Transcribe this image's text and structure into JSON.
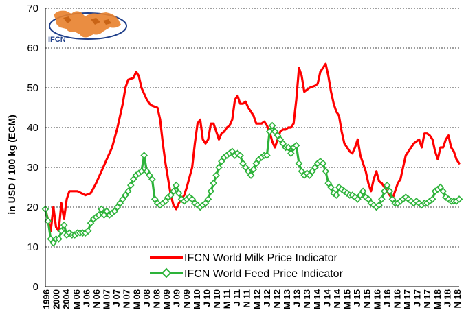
{
  "chart_data": {
    "type": "line",
    "title": "",
    "ylabel": "in USD / 100 kg (ECM)",
    "xlabel": "",
    "ylim": [
      0,
      70
    ],
    "yticks": [
      0,
      10,
      20,
      30,
      40,
      50,
      60,
      70
    ],
    "grid": "horizontal dashed",
    "legend": "bottom-center",
    "logo_text": "IFCN",
    "x_tick_labels": [
      "1996",
      "2000",
      "2004",
      "M 06",
      "J 06",
      "N 06",
      "M 07",
      "J 07",
      "N 07",
      "M 08",
      "J 08",
      "N 08",
      "M 09",
      "J 09",
      "N 09",
      "M 10",
      "J 10",
      "N 10",
      "M 11",
      "J 11",
      "N 11",
      "M 12",
      "J 12",
      "N 12",
      "M 13",
      "J 13",
      "N 13",
      "M 14",
      "J 14",
      "N 14",
      "M 15",
      "J 15",
      "N 15",
      "M 16",
      "J 16",
      "N 16",
      "M 17",
      "J 17",
      "N 17",
      "M 18",
      "J 18",
      "N 18"
    ],
    "x_points": 155,
    "series": [
      {
        "name": "IFCN World Milk Price Indicator",
        "color": "#ff0000",
        "marker": "none",
        "points": [
          [
            0,
            19.5
          ],
          [
            2,
            14
          ],
          [
            3,
            20
          ],
          [
            4,
            15
          ],
          [
            5,
            14
          ],
          [
            6,
            21
          ],
          [
            7,
            17
          ],
          [
            8,
            22
          ],
          [
            9,
            24
          ],
          [
            10,
            24
          ],
          [
            12,
            24
          ],
          [
            15,
            23
          ],
          [
            17,
            23.5
          ],
          [
            19,
            26
          ],
          [
            21,
            29
          ],
          [
            23,
            32
          ],
          [
            25,
            35
          ],
          [
            27,
            40
          ],
          [
            29,
            46
          ],
          [
            30,
            50
          ],
          [
            31,
            52
          ],
          [
            33,
            52.5
          ],
          [
            34,
            54
          ],
          [
            35,
            53
          ],
          [
            36,
            50
          ],
          [
            38,
            47
          ],
          [
            39,
            46
          ],
          [
            40,
            45.5
          ],
          [
            42,
            45
          ],
          [
            43,
            42
          ],
          [
            44,
            36
          ],
          [
            45,
            31
          ],
          [
            47,
            23
          ],
          [
            48,
            20.5
          ],
          [
            49,
            19.5
          ],
          [
            50,
            21
          ],
          [
            51,
            22
          ],
          [
            52,
            23
          ],
          [
            53,
            25
          ],
          [
            55,
            30
          ],
          [
            56,
            36
          ],
          [
            57,
            41
          ],
          [
            58,
            42
          ],
          [
            59,
            37
          ],
          [
            60,
            36
          ],
          [
            61,
            37
          ],
          [
            62,
            41
          ],
          [
            63,
            41
          ],
          [
            64,
            39
          ],
          [
            65,
            37
          ],
          [
            66,
            38.5
          ],
          [
            67,
            39
          ],
          [
            68,
            40
          ],
          [
            69,
            40.5
          ],
          [
            70,
            42
          ],
          [
            71,
            47
          ],
          [
            72,
            48
          ],
          [
            73,
            46
          ],
          [
            74,
            46
          ],
          [
            75,
            46.5
          ],
          [
            76,
            45
          ],
          [
            77,
            44
          ],
          [
            78,
            43
          ],
          [
            79,
            41
          ],
          [
            81,
            41
          ],
          [
            82,
            41.5
          ],
          [
            83,
            40.5
          ],
          [
            84,
            39
          ],
          [
            85,
            36.5
          ],
          [
            86,
            35
          ],
          [
            87,
            37
          ],
          [
            88,
            39
          ],
          [
            89,
            39.5
          ],
          [
            90,
            39.5
          ],
          [
            91,
            40
          ],
          [
            92,
            40
          ],
          [
            93,
            41
          ],
          [
            94,
            47
          ],
          [
            95,
            55
          ],
          [
            96,
            53
          ],
          [
            97,
            49
          ],
          [
            98,
            49.5
          ],
          [
            99,
            50
          ],
          [
            101,
            50.5
          ],
          [
            102,
            51
          ],
          [
            103,
            54
          ],
          [
            104,
            55
          ],
          [
            105,
            56
          ],
          [
            106,
            53
          ],
          [
            107,
            49
          ],
          [
            108,
            46
          ],
          [
            109,
            44
          ],
          [
            110,
            43
          ],
          [
            111,
            39
          ],
          [
            112,
            36
          ],
          [
            113,
            35
          ],
          [
            114,
            34
          ],
          [
            115,
            33.5
          ],
          [
            116,
            35
          ],
          [
            117,
            37
          ],
          [
            118,
            33
          ],
          [
            119,
            31
          ],
          [
            120,
            29
          ],
          [
            121,
            26
          ],
          [
            122,
            24
          ],
          [
            123,
            27
          ],
          [
            124,
            29
          ],
          [
            125,
            26.5
          ],
          [
            126,
            26
          ],
          [
            127,
            25
          ],
          [
            128,
            24
          ],
          [
            129,
            23
          ],
          [
            130,
            22
          ],
          [
            131,
            24
          ],
          [
            132,
            26
          ],
          [
            133,
            27
          ],
          [
            134,
            30
          ],
          [
            135,
            33
          ],
          [
            136,
            34
          ],
          [
            137,
            35
          ],
          [
            138,
            36
          ],
          [
            139,
            36.5
          ],
          [
            140,
            37
          ],
          [
            141,
            35
          ],
          [
            142,
            38.5
          ],
          [
            143,
            38.5
          ],
          [
            144,
            38
          ],
          [
            145,
            37
          ],
          [
            146,
            34
          ],
          [
            147,
            32
          ],
          [
            148,
            35
          ],
          [
            149,
            35
          ],
          [
            150,
            37
          ],
          [
            151,
            38
          ],
          [
            152,
            35
          ],
          [
            153,
            34
          ],
          [
            154,
            32
          ],
          [
            155,
            31
          ]
        ]
      },
      {
        "name": "IFCN World Feed Price Indicator",
        "color": "#2db33a",
        "marker": "diamond",
        "points": [
          [
            0,
            19.5
          ],
          [
            1,
            16.5
          ],
          [
            2,
            12
          ],
          [
            3,
            11
          ],
          [
            4,
            12
          ],
          [
            5,
            12
          ],
          [
            6,
            14
          ],
          [
            7,
            15.5
          ],
          [
            8,
            13
          ],
          [
            9,
            13.5
          ],
          [
            10,
            13
          ],
          [
            11,
            13
          ],
          [
            12,
            13.5
          ],
          [
            13,
            13.5
          ],
          [
            14,
            13.5
          ],
          [
            15,
            13.5
          ],
          [
            16,
            14
          ],
          [
            17,
            16
          ],
          [
            18,
            17
          ],
          [
            19,
            17.5
          ],
          [
            20,
            18
          ],
          [
            21,
            19.5
          ],
          [
            22,
            18
          ],
          [
            23,
            19
          ],
          [
            24,
            18
          ],
          [
            25,
            18.5
          ],
          [
            26,
            19
          ],
          [
            27,
            20
          ],
          [
            28,
            21
          ],
          [
            29,
            22
          ],
          [
            30,
            23
          ],
          [
            31,
            24
          ],
          [
            32,
            25.5
          ],
          [
            33,
            27
          ],
          [
            34,
            28
          ],
          [
            35,
            28.5
          ],
          [
            36,
            29
          ],
          [
            37,
            33
          ],
          [
            38,
            29
          ],
          [
            39,
            28
          ],
          [
            40,
            27
          ],
          [
            41,
            22
          ],
          [
            42,
            21
          ],
          [
            43,
            20.5
          ],
          [
            44,
            21
          ],
          [
            45,
            21.5
          ],
          [
            46,
            22.5
          ],
          [
            47,
            23
          ],
          [
            48,
            24
          ],
          [
            49,
            25.5
          ],
          [
            50,
            23.5
          ],
          [
            51,
            22
          ],
          [
            52,
            21.5
          ],
          [
            53,
            22
          ],
          [
            54,
            22.5
          ],
          [
            55,
            22
          ],
          [
            56,
            21
          ],
          [
            57,
            20.5
          ],
          [
            58,
            20
          ],
          [
            59,
            20.5
          ],
          [
            60,
            21
          ],
          [
            61,
            22
          ],
          [
            62,
            24
          ],
          [
            63,
            26
          ],
          [
            64,
            28
          ],
          [
            65,
            30
          ],
          [
            66,
            31.5
          ],
          [
            67,
            32.5
          ],
          [
            68,
            33
          ],
          [
            69,
            33.5
          ],
          [
            70,
            34
          ],
          [
            71,
            33
          ],
          [
            72,
            33.5
          ],
          [
            73,
            33
          ],
          [
            74,
            31
          ],
          [
            75,
            30
          ],
          [
            76,
            29
          ],
          [
            77,
            28
          ],
          [
            78,
            29.5
          ],
          [
            79,
            31
          ],
          [
            80,
            32
          ],
          [
            81,
            32.5
          ],
          [
            82,
            33
          ],
          [
            83,
            33
          ],
          [
            84,
            39
          ],
          [
            85,
            40.5
          ],
          [
            86,
            39
          ],
          [
            87,
            38
          ],
          [
            88,
            37
          ],
          [
            89,
            36
          ],
          [
            90,
            35
          ],
          [
            91,
            35
          ],
          [
            92,
            33.5
          ],
          [
            93,
            35
          ],
          [
            94,
            35.5
          ],
          [
            95,
            31
          ],
          [
            96,
            29
          ],
          [
            97,
            28
          ],
          [
            98,
            28.5
          ],
          [
            99,
            28
          ],
          [
            100,
            29
          ],
          [
            101,
            30
          ],
          [
            102,
            31
          ],
          [
            103,
            31.5
          ],
          [
            104,
            31
          ],
          [
            105,
            29
          ],
          [
            106,
            26
          ],
          [
            107,
            25
          ],
          [
            108,
            23.5
          ],
          [
            109,
            23
          ],
          [
            110,
            25
          ],
          [
            111,
            24.5
          ],
          [
            112,
            24
          ],
          [
            113,
            23.5
          ],
          [
            114,
            23
          ],
          [
            115,
            23
          ],
          [
            116,
            22.5
          ],
          [
            117,
            22
          ],
          [
            118,
            23
          ],
          [
            119,
            24
          ],
          [
            120,
            22.5
          ],
          [
            121,
            22
          ],
          [
            122,
            21
          ],
          [
            123,
            20.5
          ],
          [
            124,
            20
          ],
          [
            125,
            20.5
          ],
          [
            126,
            22
          ],
          [
            127,
            24
          ],
          [
            128,
            25.5
          ],
          [
            129,
            24
          ],
          [
            130,
            22
          ],
          [
            131,
            21
          ],
          [
            132,
            21
          ],
          [
            133,
            21.5
          ],
          [
            134,
            22
          ],
          [
            135,
            22.5
          ],
          [
            136,
            22
          ],
          [
            137,
            21.5
          ],
          [
            138,
            21
          ],
          [
            139,
            21.5
          ],
          [
            140,
            21
          ],
          [
            141,
            20.5
          ],
          [
            142,
            21
          ],
          [
            143,
            21
          ],
          [
            144,
            21.5
          ],
          [
            145,
            22
          ],
          [
            146,
            24
          ],
          [
            147,
            24.5
          ],
          [
            148,
            25
          ],
          [
            149,
            24
          ],
          [
            150,
            22.5
          ],
          [
            151,
            22
          ],
          [
            152,
            21.5
          ],
          [
            153,
            21.5
          ],
          [
            154,
            21.5
          ],
          [
            155,
            22
          ]
        ]
      }
    ]
  }
}
